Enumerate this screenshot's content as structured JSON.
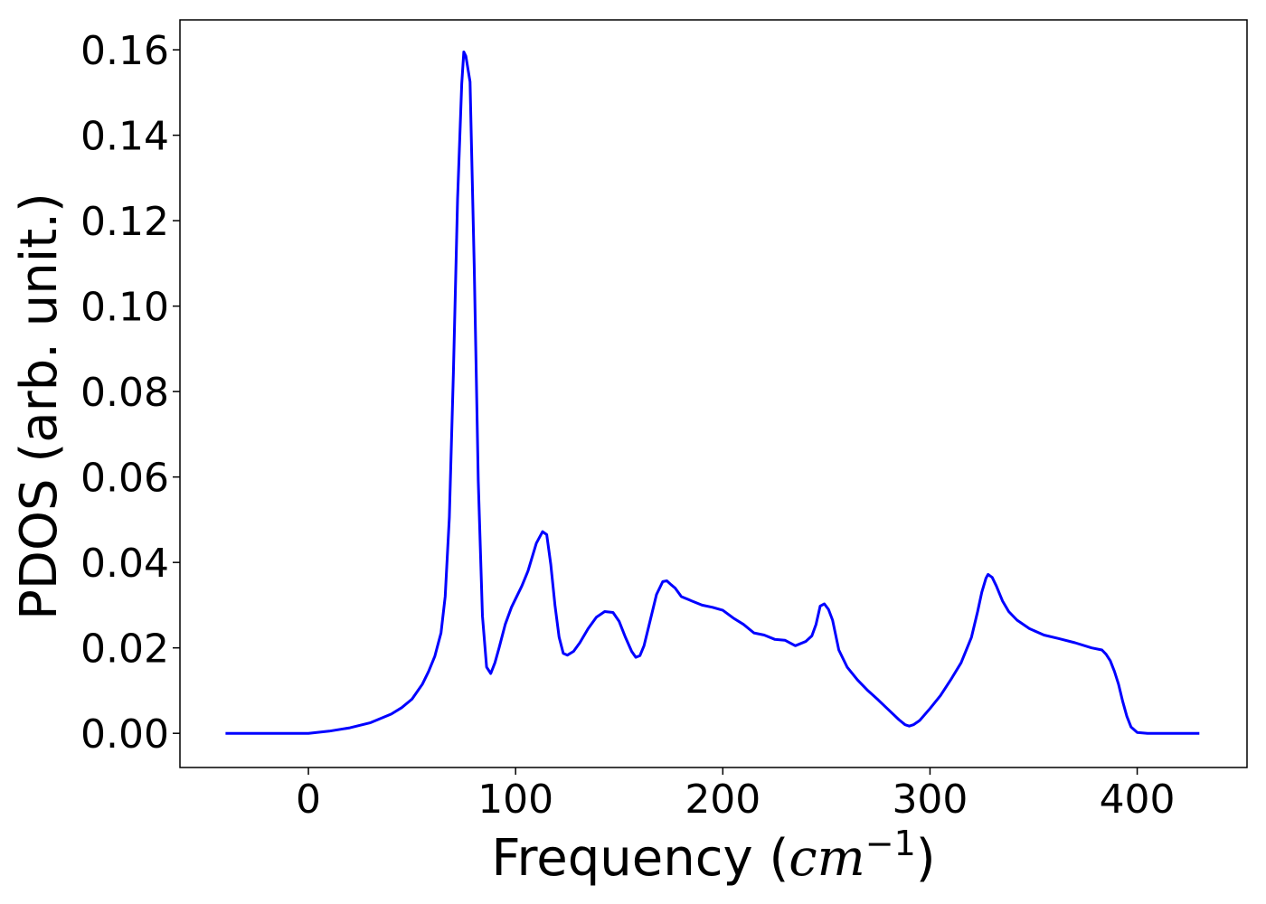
{
  "chart_data": {
    "type": "line",
    "title": "",
    "xlabel_prefix": "Frequency (",
    "xlabel_math": "cm",
    "xlabel_exponent": "−1",
    "xlabel_suffix": ")",
    "ylabel": "PDOS (arb. unit.)",
    "xlim": [
      -62,
      453
    ],
    "ylim": [
      -0.008,
      0.167
    ],
    "xticks": [
      0,
      100,
      200,
      300,
      400
    ],
    "xtick_labels": [
      "0",
      "100",
      "200",
      "300",
      "400"
    ],
    "yticks": [
      0.0,
      0.02,
      0.04,
      0.06,
      0.08,
      0.1,
      0.12,
      0.14,
      0.16
    ],
    "ytick_labels": [
      "0.00",
      "0.02",
      "0.04",
      "0.06",
      "0.08",
      "0.10",
      "0.12",
      "0.14",
      "0.16"
    ],
    "grid": false,
    "series": [
      {
        "color": "#0000ff",
        "x": [
          -40,
          -20,
          0,
          10,
          20,
          30,
          40,
          45,
          50,
          55,
          58,
          61,
          64,
          66,
          68,
          70,
          72,
          74,
          75,
          76,
          78,
          80,
          82,
          84,
          86,
          88,
          90,
          92,
          95,
          98,
          100,
          103,
          106,
          110,
          113,
          115,
          117,
          119,
          121,
          123,
          125,
          128,
          131,
          135,
          139,
          143,
          147,
          150,
          153,
          156,
          158,
          160,
          162,
          165,
          168,
          171,
          173,
          175,
          177,
          180,
          185,
          190,
          195,
          200,
          205,
          210,
          215,
          220,
          225,
          230,
          235,
          240,
          243,
          245,
          247,
          249,
          251,
          253,
          256,
          260,
          265,
          270,
          275,
          280,
          285,
          288,
          290,
          292,
          295,
          300,
          305,
          310,
          315,
          320,
          323,
          325,
          327,
          328,
          330,
          332,
          335,
          338,
          342,
          348,
          355,
          362,
          370,
          378,
          383,
          385,
          387,
          389,
          391,
          393,
          395,
          397,
          400,
          405,
          410,
          420,
          430
        ],
        "y": [
          0.0,
          0.0,
          0.0,
          0.0005,
          0.0013,
          0.0025,
          0.0045,
          0.006,
          0.008,
          0.0115,
          0.0145,
          0.018,
          0.0235,
          0.032,
          0.0505,
          0.0845,
          0.125,
          0.152,
          0.1595,
          0.1585,
          0.1525,
          0.1095,
          0.059,
          0.0275,
          0.0155,
          0.014,
          0.0165,
          0.02,
          0.0255,
          0.0295,
          0.0315,
          0.0345,
          0.038,
          0.0445,
          0.0472,
          0.0465,
          0.0395,
          0.03,
          0.0225,
          0.0187,
          0.0183,
          0.0192,
          0.0212,
          0.0245,
          0.0272,
          0.0285,
          0.0283,
          0.0262,
          0.0225,
          0.0192,
          0.0178,
          0.0182,
          0.0205,
          0.0265,
          0.0325,
          0.0355,
          0.0357,
          0.0348,
          0.034,
          0.032,
          0.031,
          0.03,
          0.0295,
          0.0288,
          0.027,
          0.0255,
          0.0235,
          0.023,
          0.022,
          0.0218,
          0.0205,
          0.0215,
          0.0228,
          0.0255,
          0.0298,
          0.0303,
          0.029,
          0.0265,
          0.0195,
          0.0155,
          0.0125,
          0.01,
          0.0078,
          0.0055,
          0.0032,
          0.002,
          0.0017,
          0.002,
          0.003,
          0.0058,
          0.0088,
          0.0125,
          0.0165,
          0.0225,
          0.0285,
          0.033,
          0.0363,
          0.0372,
          0.0365,
          0.0345,
          0.031,
          0.0285,
          0.0265,
          0.0245,
          0.023,
          0.0222,
          0.0212,
          0.02,
          0.0195,
          0.0185,
          0.017,
          0.0145,
          0.0115,
          0.0075,
          0.004,
          0.0015,
          0.0002,
          0.0,
          0.0,
          0.0,
          0.0
        ]
      }
    ]
  }
}
